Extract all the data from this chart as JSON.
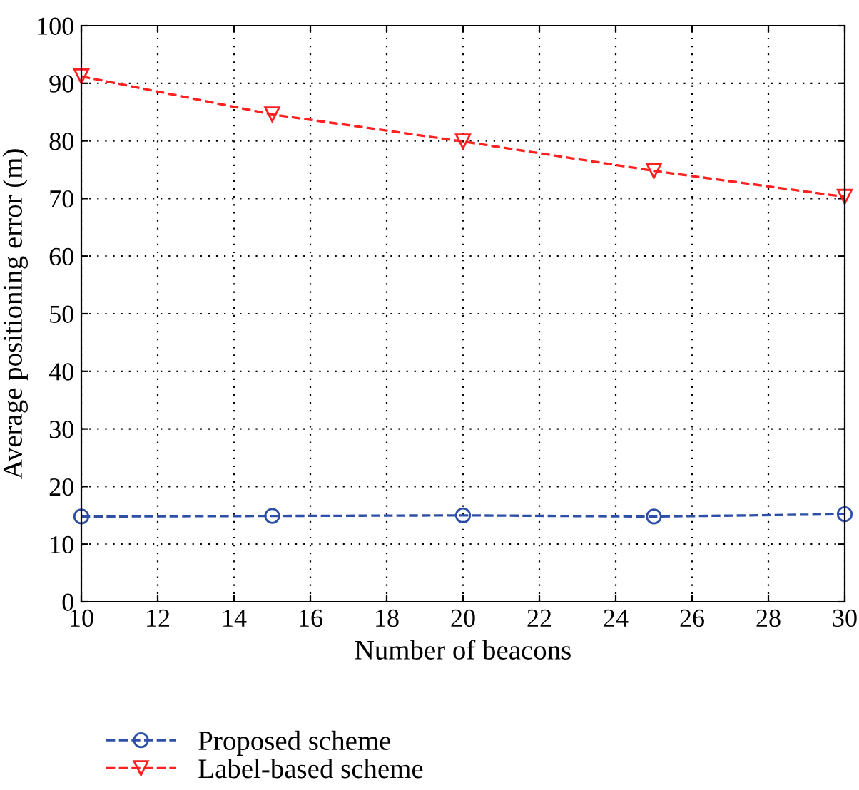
{
  "chart_data": {
    "type": "line",
    "xlabel": "Number of beacons",
    "ylabel": "Average positioning error (m)",
    "x": [
      10,
      15,
      20,
      25,
      30
    ],
    "series": [
      {
        "name": "Proposed scheme",
        "color": "#2e4fa8",
        "marker": "circle",
        "values": [
          14.8,
          14.9,
          15.0,
          14.8,
          15.2
        ]
      },
      {
        "name": "Label-based scheme",
        "color": "#ff2020",
        "marker": "triangle",
        "values": [
          91.2,
          84.6,
          79.9,
          74.8,
          70.3
        ]
      }
    ],
    "line_style": "dashed",
    "xlim": [
      10,
      30
    ],
    "xticks": [
      10,
      12,
      14,
      16,
      18,
      20,
      22,
      24,
      26,
      28,
      30
    ],
    "ylim": [
      0,
      100
    ],
    "yticks": [
      0,
      10,
      20,
      30,
      40,
      50,
      60,
      70,
      80,
      90,
      100
    ],
    "grid": true,
    "legend": "bottom"
  }
}
